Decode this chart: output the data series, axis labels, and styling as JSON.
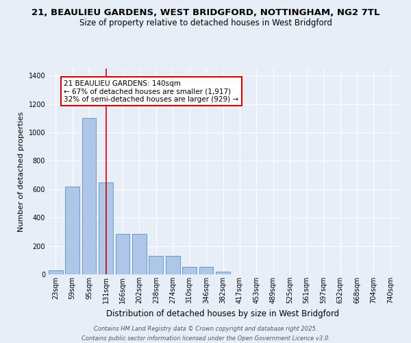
{
  "title_line1": "21, BEAULIEU GARDENS, WEST BRIDGFORD, NOTTINGHAM, NG2 7TL",
  "title_line2": "Size of property relative to detached houses in West Bridgford",
  "xlabel": "Distribution of detached houses by size in West Bridgford",
  "ylabel": "Number of detached properties",
  "categories": [
    "23sqm",
    "59sqm",
    "95sqm",
    "131sqm",
    "166sqm",
    "202sqm",
    "238sqm",
    "274sqm",
    "310sqm",
    "346sqm",
    "382sqm",
    "417sqm",
    "453sqm",
    "489sqm",
    "525sqm",
    "561sqm",
    "597sqm",
    "632sqm",
    "668sqm",
    "704sqm",
    "740sqm"
  ],
  "values": [
    30,
    620,
    1100,
    650,
    285,
    285,
    130,
    130,
    55,
    55,
    18,
    0,
    0,
    0,
    0,
    0,
    0,
    0,
    0,
    0,
    0
  ],
  "bar_color": "#aec6e8",
  "bar_edge_color": "#5a8fc0",
  "background_color": "#e8eef8",
  "grid_color": "#ffffff",
  "red_line_index": 3,
  "annotation_text": "21 BEAULIEU GARDENS: 140sqm\n← 67% of detached houses are smaller (1,917)\n32% of semi-detached houses are larger (929) →",
  "annotation_box_facecolor": "#ffffff",
  "annotation_box_edgecolor": "#cc0000",
  "red_line_color": "#cc0000",
  "ylim": [
    0,
    1450
  ],
  "yticks": [
    0,
    200,
    400,
    600,
    800,
    1000,
    1200,
    1400
  ],
  "footer_line1": "Contains HM Land Registry data © Crown copyright and database right 2025.",
  "footer_line2": "Contains public sector information licensed under the Open Government Licence v3.0.",
  "title_fontsize": 9.5,
  "subtitle_fontsize": 8.5,
  "ylabel_fontsize": 8,
  "xlabel_fontsize": 8.5,
  "tick_fontsize": 7,
  "annotation_fontsize": 7.5,
  "footer_fontsize": 6
}
